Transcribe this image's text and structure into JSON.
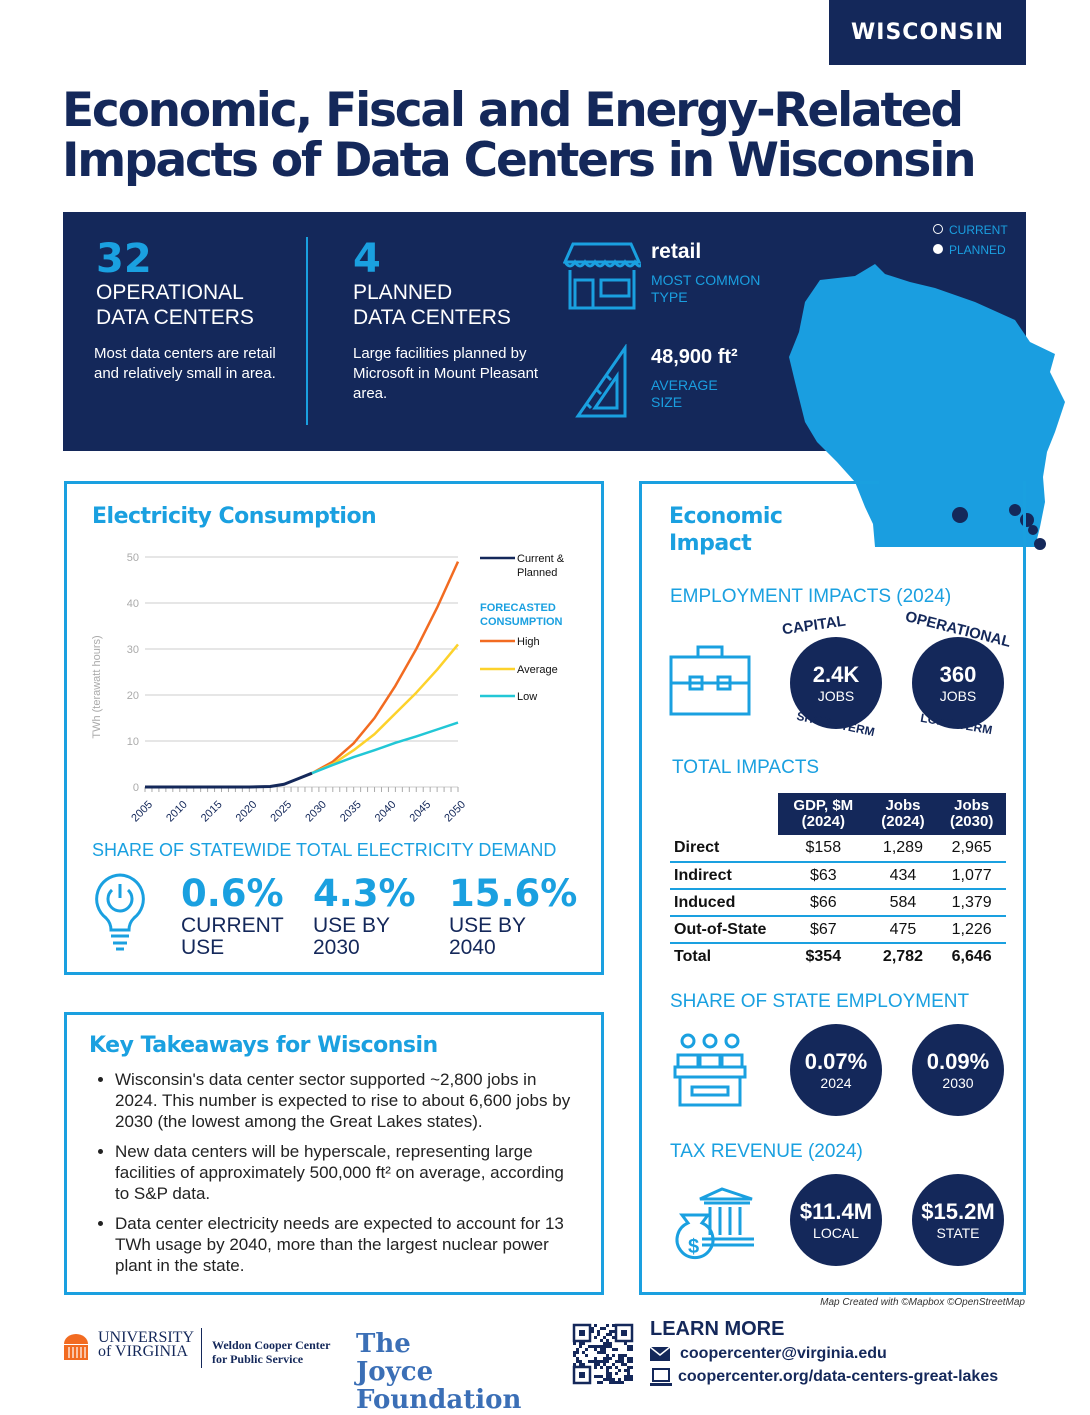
{
  "state_tag": "WISCONSIN",
  "title_line1": "Economic, Fiscal and Energy-Related",
  "title_line2": "Impacts of Data Centers in Wisconsin",
  "hero": {
    "operational": {
      "value": "32",
      "label1": "OPERATIONAL",
      "label2": "DATA CENTERS",
      "desc": "Most data centers are retail and relatively small in area."
    },
    "planned": {
      "value": "4",
      "label1": "PLANNED",
      "label2": "DATA CENTERS",
      "desc": "Large facilities planned by Microsoft in Mount Pleasant area."
    },
    "type": {
      "value": "retail",
      "label1": "MOST COMMON",
      "label2": "TYPE",
      "icon": "storefront-icon"
    },
    "size": {
      "value": "48,900 ft²",
      "label1": "AVERAGE",
      "label2": "SIZE",
      "icon": "set-square-icon"
    },
    "map_legend": {
      "current": "CURRENT",
      "planned": "PLANNED"
    }
  },
  "electricity": {
    "heading": "Electricity Consumption",
    "share_heading": "SHARE OF STATEWIDE TOTAL ELECTRICITY DEMAND",
    "shares": [
      {
        "value": "0.6%",
        "l1": "CURRENT",
        "l2": "USE"
      },
      {
        "value": "4.3%",
        "l1": "USE BY",
        "l2": "2030"
      },
      {
        "value": "15.6%",
        "l1": "USE BY",
        "l2": "2040"
      }
    ]
  },
  "chart_data": {
    "type": "line",
    "ylabel": "TWh (terawatt hours)",
    "xlabel": "",
    "ylim": [
      0,
      50
    ],
    "xlim": [
      2005,
      2050
    ],
    "yticks": [
      0,
      10,
      20,
      30,
      40,
      50
    ],
    "xticks": [
      2005,
      2010,
      2015,
      2020,
      2025,
      2030,
      2035,
      2040,
      2045,
      2050
    ],
    "grid": true,
    "legend_placement": "right",
    "legend_group_title": "FORECASTED CONSUMPTION",
    "series": [
      {
        "name": "Current & Planned",
        "color": "#14285a",
        "x": [
          2005,
          2010,
          2015,
          2020,
          2023,
          2025,
          2027,
          2029
        ],
        "y": [
          0,
          0,
          0,
          0,
          0.1,
          0.6,
          1.8,
          3
        ]
      },
      {
        "name": "High",
        "color": "#f26b21",
        "x": [
          2029,
          2032,
          2035,
          2038,
          2041,
          2044,
          2047,
          2050
        ],
        "y": [
          3,
          5.5,
          9.5,
          15,
          22,
          30,
          39,
          49
        ]
      },
      {
        "name": "Average",
        "color": "#fdd22b",
        "x": [
          2029,
          2032,
          2035,
          2038,
          2041,
          2044,
          2047,
          2050
        ],
        "y": [
          3,
          5,
          8,
          11.5,
          16,
          20.5,
          25.5,
          31
        ]
      },
      {
        "name": "Low",
        "color": "#22c7d6",
        "x": [
          2029,
          2032,
          2035,
          2038,
          2041,
          2044,
          2047,
          2050
        ],
        "y": [
          3,
          4.8,
          6.5,
          8,
          9.6,
          11,
          12.5,
          14
        ]
      }
    ]
  },
  "takeaways": {
    "heading": "Key Takeaways for Wisconsin",
    "items": [
      "Wisconsin's data center sector supported ~2,800 jobs in 2024. This number is expected to rise to about 6,600 jobs by 2030 (the lowest among the Great Lakes states).",
      "New data centers will be hyperscale, representing large facilities of approximately 500,000 ft² on average, according to S&P data.",
      "Data center electricity needs are expected to account for 13 TWh usage by 2040, more than the largest nuclear power plant in the state."
    ]
  },
  "economic": {
    "heading1": "Economic",
    "heading2": "Impact",
    "employment_heading": "EMPLOYMENT IMPACTS (2024)",
    "capital": {
      "arc_top": "CAPITAL",
      "value": "2.4K",
      "unit": "JOBS",
      "arc_bottom": "SHORT-TERM"
    },
    "operational": {
      "arc_top": "OPERATIONAL",
      "value": "360",
      "unit": "JOBS",
      "arc_bottom": "LONG-TERM"
    },
    "total_heading": "TOTAL IMPACTS",
    "table": {
      "headers": [
        [
          "GDP, $M",
          "(2024)"
        ],
        [
          "Jobs",
          "(2024)"
        ],
        [
          "Jobs",
          "(2030)"
        ]
      ],
      "rows": [
        {
          "label": "Direct",
          "gdp": "$158",
          "jobs2024": "1,289",
          "jobs2030": "2,965"
        },
        {
          "label": "Indirect",
          "gdp": "$63",
          "jobs2024": "434",
          "jobs2030": "1,077"
        },
        {
          "label": "Induced",
          "gdp": "$66",
          "jobs2024": "584",
          "jobs2030": "1,379"
        },
        {
          "label": "Out-of-State",
          "gdp": "$67",
          "jobs2024": "475",
          "jobs2030": "1,226"
        },
        {
          "label": "Total",
          "gdp": "$354",
          "jobs2024": "2,782",
          "jobs2030": "6,646"
        }
      ]
    },
    "share_heading": "SHARE OF STATE EMPLOYMENT",
    "share": [
      {
        "value": "0.07%",
        "label": "2024"
      },
      {
        "value": "0.09%",
        "label": "2030"
      }
    ],
    "tax_heading": "TAX REVENUE (2024)",
    "tax": [
      {
        "value": "$11.4M",
        "label": "LOCAL"
      },
      {
        "value": "$15.2M",
        "label": "STATE"
      }
    ]
  },
  "map_credit": "Map Created with ©Mapbox ©OpenStreetMap",
  "footer": {
    "uva": "UNIVERSITY of VIRGINIA",
    "weldon1": "Weldon Cooper Center",
    "weldon2": "for Public Service",
    "joyce": "The Joyce Foundation",
    "learn_more": "LEARN MORE",
    "email": "coopercenter@virginia.edu",
    "url": "coopercenter.org/data-centers-great-lakes"
  },
  "colors": {
    "navy": "#14285a",
    "blue": "#1aa0e0",
    "high": "#f26b21",
    "average": "#fdd22b",
    "low": "#22c7d6"
  }
}
